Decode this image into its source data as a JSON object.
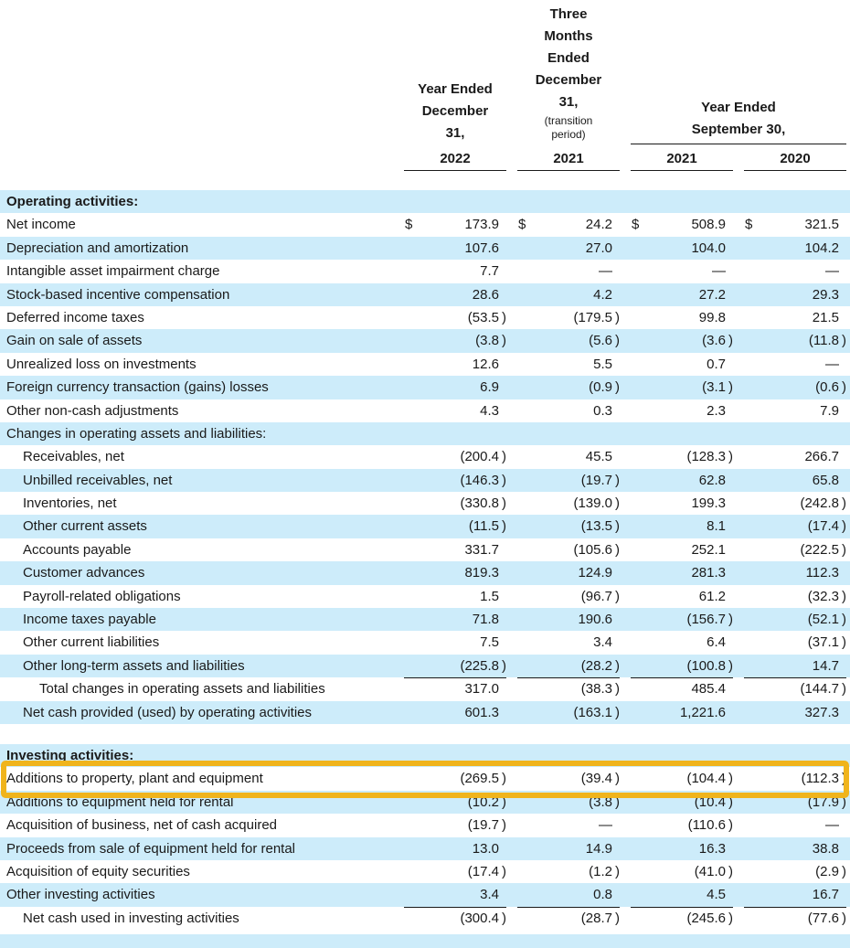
{
  "currency": "$",
  "colors": {
    "row_band": "#CDECFA",
    "highlight_border": "#F0B41C",
    "text": "#1a1a1a"
  },
  "header": {
    "col1": {
      "title": "Year Ended December 31,",
      "year": "2022"
    },
    "col2": {
      "title": "Three Months Ended December 31,",
      "note": "(transition period)",
      "year": "2021"
    },
    "col34": {
      "title": "Year Ended September 30,",
      "years": [
        "2021",
        "2020"
      ]
    }
  },
  "rows": [
    {
      "label": "Operating activities:",
      "style": "section",
      "shade": true,
      "values": [
        "",
        "",
        "",
        ""
      ]
    },
    {
      "label": "Net income",
      "shade": false,
      "dollar": true,
      "values": [
        "173.9",
        "24.2",
        "508.9",
        "321.5"
      ]
    },
    {
      "label": "Depreciation and amortization",
      "shade": true,
      "values": [
        "107.6",
        "27.0",
        "104.0",
        "104.2"
      ]
    },
    {
      "label": "Intangible asset impairment charge",
      "shade": false,
      "values": [
        "7.7",
        "—",
        "—",
        "—"
      ]
    },
    {
      "label": "Stock-based incentive compensation",
      "shade": true,
      "values": [
        "28.6",
        "4.2",
        "27.2",
        "29.3"
      ]
    },
    {
      "label": "Deferred income taxes",
      "shade": false,
      "values": [
        "(53.5)",
        "(179.5)",
        "99.8",
        "21.5"
      ]
    },
    {
      "label": "Gain on sale of assets",
      "shade": true,
      "values": [
        "(3.8)",
        "(5.6)",
        "(3.6)",
        "(11.8)"
      ]
    },
    {
      "label": "Unrealized loss on investments",
      "shade": false,
      "values": [
        "12.6",
        "5.5",
        "0.7",
        "—"
      ]
    },
    {
      "label": "Foreign currency transaction (gains) losses",
      "shade": true,
      "values": [
        "6.9",
        "(0.9)",
        "(3.1)",
        "(0.6)"
      ]
    },
    {
      "label": "Other non-cash adjustments",
      "shade": false,
      "values": [
        "4.3",
        "0.3",
        "2.3",
        "7.9"
      ]
    },
    {
      "label": "Changes in operating assets and liabilities:",
      "shade": true,
      "values": [
        "",
        "",
        "",
        ""
      ]
    },
    {
      "label": "Receivables, net",
      "indent": 1,
      "shade": false,
      "values": [
        "(200.4)",
        "45.5",
        "(128.3)",
        "266.7"
      ]
    },
    {
      "label": "Unbilled receivables, net",
      "indent": 1,
      "shade": true,
      "values": [
        "(146.3)",
        "(19.7)",
        "62.8",
        "65.8"
      ]
    },
    {
      "label": "Inventories, net",
      "indent": 1,
      "shade": false,
      "values": [
        "(330.8)",
        "(139.0)",
        "199.3",
        "(242.8)"
      ]
    },
    {
      "label": "Other current assets",
      "indent": 1,
      "shade": true,
      "values": [
        "(11.5)",
        "(13.5)",
        "8.1",
        "(17.4)"
      ]
    },
    {
      "label": "Accounts payable",
      "indent": 1,
      "shade": false,
      "values": [
        "331.7",
        "(105.6)",
        "252.1",
        "(222.5)"
      ]
    },
    {
      "label": "Customer advances",
      "indent": 1,
      "shade": true,
      "values": [
        "819.3",
        "124.9",
        "281.3",
        "112.3"
      ]
    },
    {
      "label": "Payroll-related obligations",
      "indent": 1,
      "shade": false,
      "values": [
        "1.5",
        "(96.7)",
        "61.2",
        "(32.3)"
      ]
    },
    {
      "label": "Income taxes payable",
      "indent": 1,
      "shade": true,
      "values": [
        "71.8",
        "190.6",
        "(156.7)",
        "(52.1)"
      ]
    },
    {
      "label": "Other current liabilities",
      "indent": 1,
      "shade": false,
      "values": [
        "7.5",
        "3.4",
        "6.4",
        "(37.1)"
      ]
    },
    {
      "label": "Other long-term assets and liabilities",
      "indent": 1,
      "shade": true,
      "underline": true,
      "values": [
        "(225.8)",
        "(28.2)",
        "(100.8)",
        "14.7"
      ]
    },
    {
      "label": "Total changes in operating assets and liabilities",
      "indent": 2,
      "shade": false,
      "underline": true,
      "values": [
        "317.0",
        "(38.3)",
        "485.4",
        "(144.7)"
      ]
    },
    {
      "label": "Net cash provided (used) by operating activities",
      "indent": 1,
      "shade": true,
      "values": [
        "601.3",
        "(163.1)",
        "1,221.6",
        "327.3"
      ]
    },
    {
      "spacer": "big"
    },
    {
      "label": "Investing activities:",
      "style": "section",
      "shade": true,
      "values": [
        "",
        "",
        "",
        ""
      ]
    },
    {
      "label": "Additions to property, plant and equipment",
      "shade": false,
      "highlight": true,
      "values": [
        "(269.5)",
        "(39.4)",
        "(104.4)",
        "(112.3)"
      ]
    },
    {
      "label": "Additions to equipment held for rental",
      "shade": true,
      "values": [
        "(10.2)",
        "(3.8)",
        "(10.4)",
        "(17.9)"
      ]
    },
    {
      "label": "Acquisition of business, net of cash acquired",
      "shade": false,
      "values": [
        "(19.7)",
        "—",
        "(110.6)",
        "—"
      ]
    },
    {
      "label": "Proceeds from sale of equipment held for rental",
      "shade": true,
      "values": [
        "13.0",
        "14.9",
        "16.3",
        "38.8"
      ]
    },
    {
      "label": "Acquisition of equity securities",
      "shade": false,
      "values": [
        "(17.4)",
        "(1.2)",
        "(41.0)",
        "(2.9)"
      ]
    },
    {
      "label": "Other investing activities",
      "shade": true,
      "underline": true,
      "values": [
        "3.4",
        "0.8",
        "4.5",
        "16.7"
      ]
    },
    {
      "label": "Net cash used in investing activities",
      "indent": 1,
      "shade": false,
      "values": [
        "(300.4)",
        "(28.7)",
        "(245.6)",
        "(77.6)"
      ]
    },
    {
      "spacer": "small"
    },
    {
      "label": "",
      "shade": true,
      "values": [
        "",
        "",
        "",
        ""
      ]
    }
  ]
}
